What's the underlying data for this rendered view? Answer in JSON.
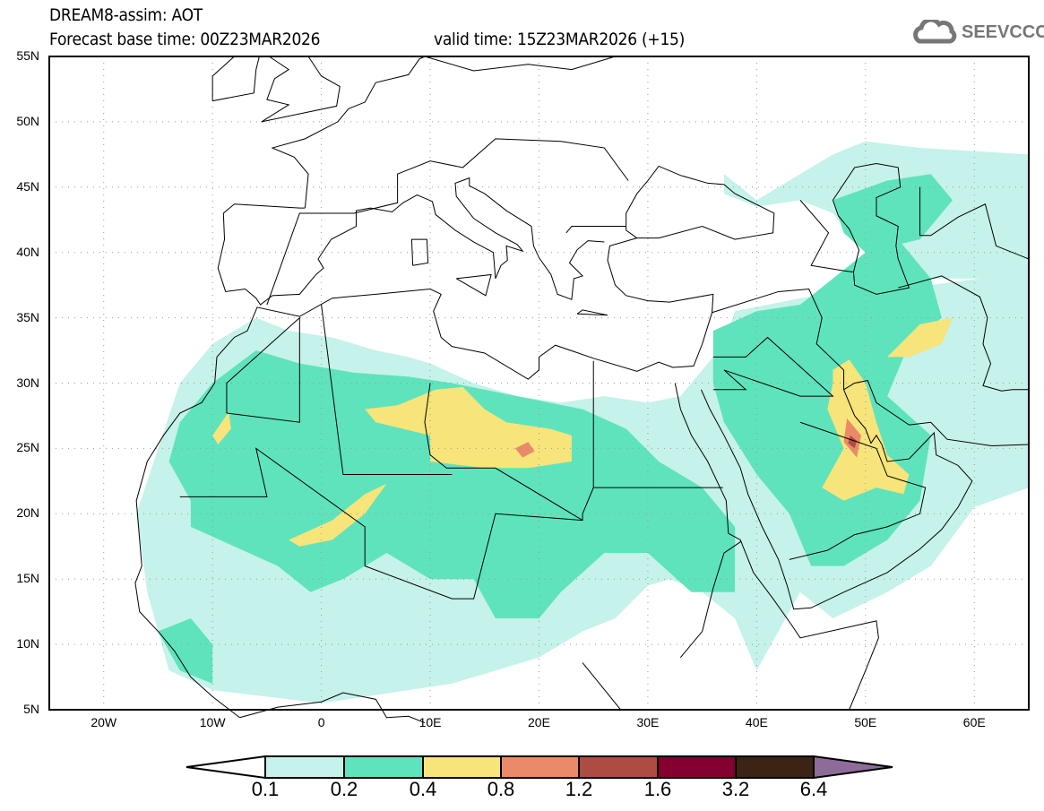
{
  "header": {
    "title": "DREAM8-assim: AOT",
    "base_time": "Forecast base time: 00Z23MAR2026",
    "valid_time": "valid time: 15Z23MAR2026 (+15)"
  },
  "logo": {
    "text": "SEEVCCC",
    "icon": "cloud-icon"
  },
  "map": {
    "lat_labels": [
      "55N",
      "50N",
      "45N",
      "40N",
      "35N",
      "30N",
      "25N",
      "20N",
      "15N",
      "10N",
      "5N"
    ],
    "lon_labels": [
      "20W",
      "10W",
      "0",
      "10E",
      "20E",
      "30E",
      "40E",
      "50E",
      "60E"
    ],
    "lon_range": [
      -25,
      65
    ],
    "lat_range": [
      5,
      55
    ]
  },
  "colorbar": {
    "labels": [
      "0.1",
      "0.2",
      "0.4",
      "0.8",
      "1.2",
      "1.6",
      "3.2",
      "6.4"
    ],
    "colors": [
      "#ffffff",
      "#c5f2ea",
      "#5fe3bd",
      "#f7e47a",
      "#eb8a69",
      "#ad4c42",
      "#830030",
      "#3b2413",
      "#8e6c9a"
    ]
  }
}
